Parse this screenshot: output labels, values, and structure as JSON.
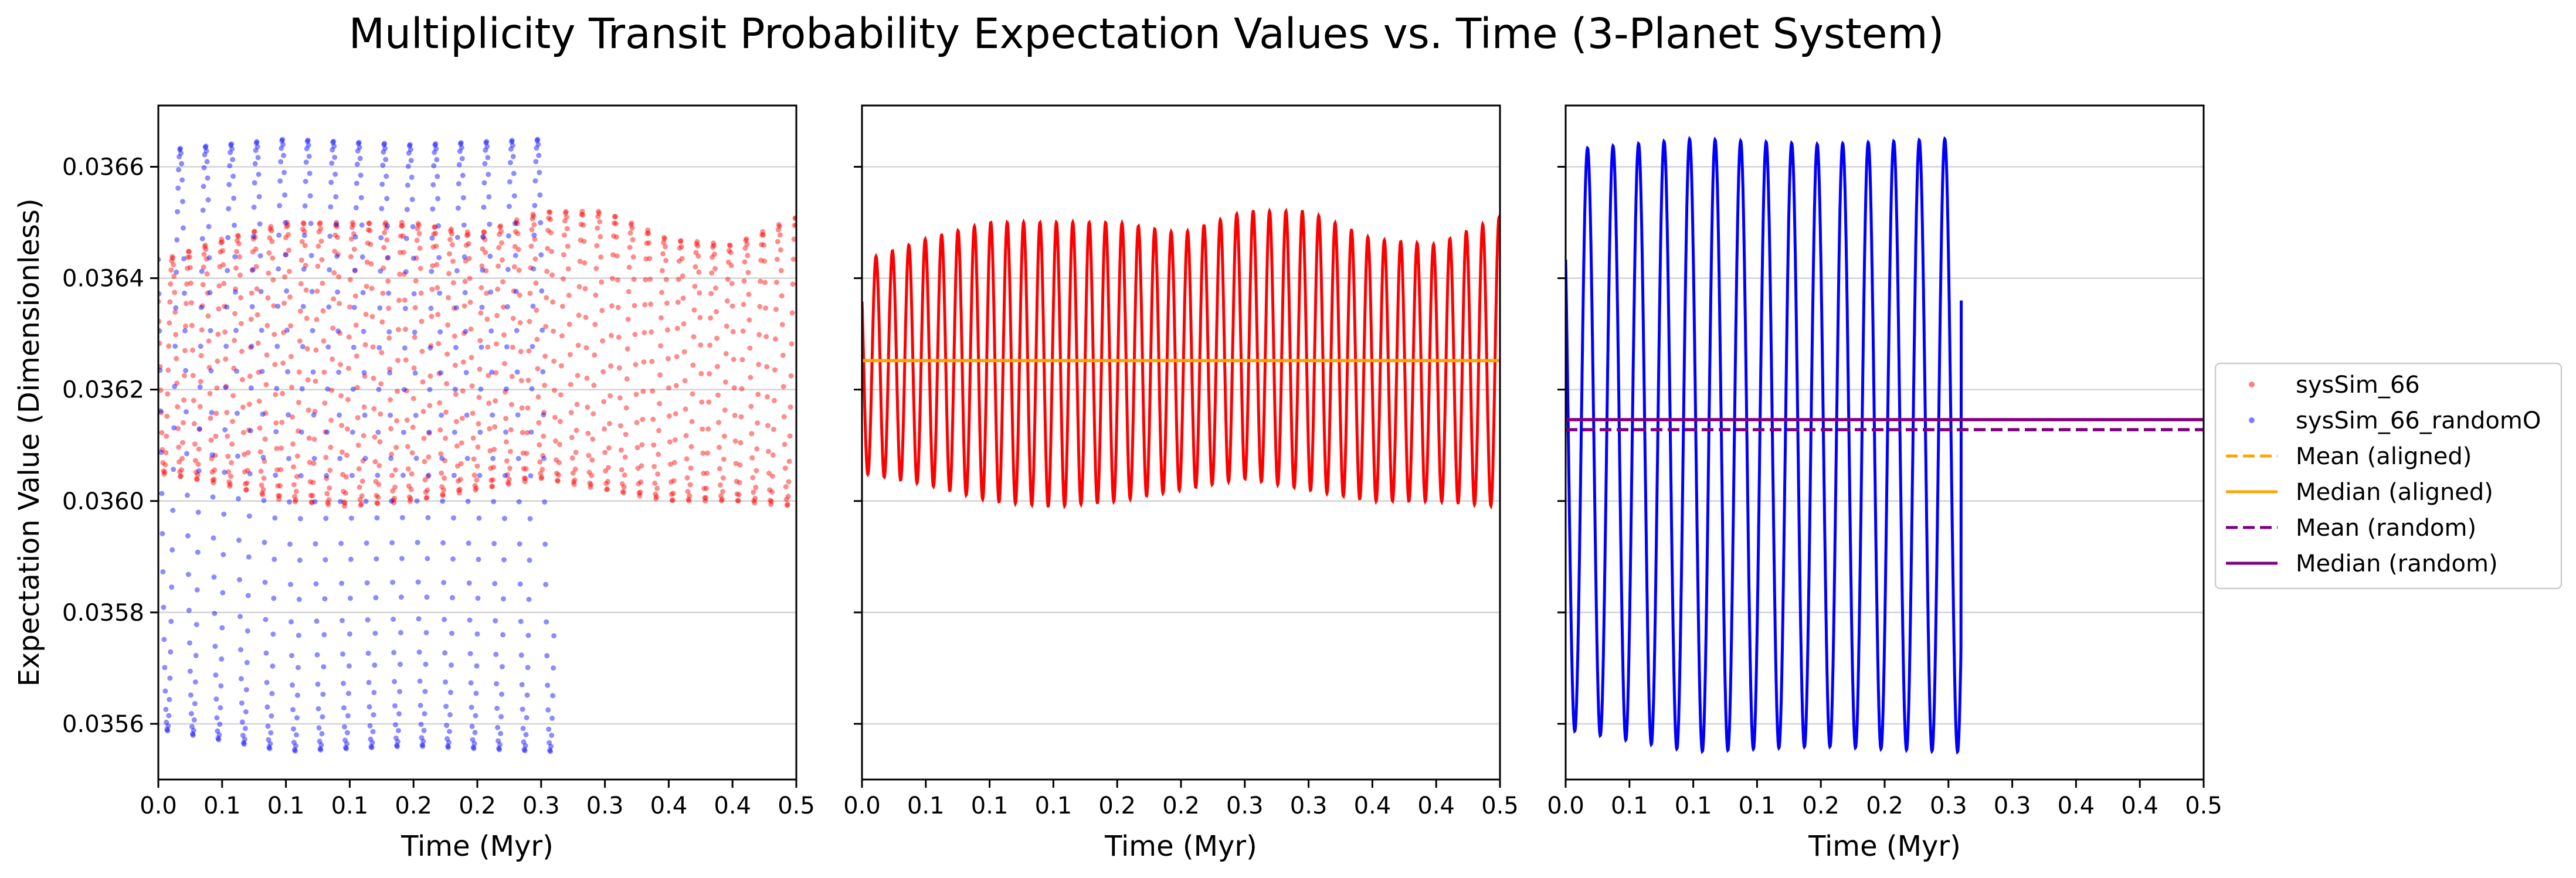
{
  "chart_data": {
    "type": "line",
    "title": "Multiplicity Transit Probability Expectation Values vs. Time (3-Planet System)",
    "ylabel": "Expectation Value (Dimensionless)",
    "ylim": [
      0.0355,
      0.03671
    ],
    "y_ticks": [
      0.0356,
      0.0358,
      0.036,
      0.0362,
      0.0364,
      0.0366
    ],
    "y_tick_labels": [
      "0.0356",
      "0.0358",
      "0.0360",
      "0.0362",
      "0.0364",
      "0.0366"
    ],
    "y_grid": true,
    "legend_position": "right",
    "legend": [
      "sysSim_66",
      "sysSim_66_randomO",
      "Mean (aligned)",
      "Median (aligned)",
      "Mean (random)",
      "Median (random)"
    ],
    "colors": {
      "aligned": "#ff0000",
      "random": "#0000ff",
      "aligned_stats": "#ffa500",
      "random_stats": "#800080",
      "grid": "#d3d3d3"
    },
    "panels": [
      {
        "xlabel": "Time (Myr)",
        "xlim": [
          0.0,
          0.5
        ],
        "x_ticks": [
          0.0,
          0.05,
          0.1,
          0.15,
          0.2,
          0.25,
          0.3,
          0.35,
          0.4,
          0.45,
          0.5
        ],
        "x_tick_labels": [
          "0.0",
          "0.1",
          "0.1",
          "0.1",
          "0.2",
          "0.2",
          "0.3",
          "0.3",
          "0.4",
          "0.4",
          "0.5"
        ],
        "style": "scatter",
        "series": [
          "aligned",
          "random"
        ]
      },
      {
        "xlabel": "Time (Myr)",
        "xlim": [
          0.0,
          0.5
        ],
        "x_ticks": [
          0.0,
          0.05,
          0.1,
          0.15,
          0.2,
          0.25,
          0.3,
          0.35,
          0.4,
          0.45,
          0.5
        ],
        "x_tick_labels": [
          "0.0",
          "0.1",
          "0.1",
          "0.1",
          "0.2",
          "0.2",
          "0.3",
          "0.3",
          "0.4",
          "0.4",
          "0.5"
        ],
        "style": "line",
        "series": [
          "aligned"
        ],
        "hlines": [
          {
            "label": "Mean (aligned)",
            "value": 0.036252,
            "dashed": true,
            "color": "#ffa500"
          },
          {
            "label": "Median (aligned)",
            "value": 0.036252,
            "dashed": false,
            "color": "#ffa500"
          }
        ]
      },
      {
        "xlabel": "Time (Myr)",
        "xlim": [
          0.0,
          0.5
        ],
        "x_ticks": [
          0.0,
          0.05,
          0.1,
          0.15,
          0.2,
          0.25,
          0.3,
          0.35,
          0.4,
          0.45,
          0.5
        ],
        "x_tick_labels": [
          "0.0",
          "0.1",
          "0.1",
          "0.1",
          "0.2",
          "0.2",
          "0.3",
          "0.3",
          "0.4",
          "0.4",
          "0.5"
        ],
        "style": "line",
        "series": [
          "random"
        ],
        "hlines": [
          {
            "label": "Mean (random)",
            "value": 0.036128,
            "dashed": true,
            "color": "#800080"
          },
          {
            "label": "Median (random)",
            "value": 0.036146,
            "dashed": false,
            "color": "#800080"
          }
        ]
      }
    ],
    "series": [
      {
        "name": "sysSim_66",
        "key": "aligned",
        "x_range": [
          0.0,
          0.5
        ],
        "period_myr": 0.01285,
        "max_envelope": {
          "x": [
            0.0,
            0.05,
            0.1,
            0.15,
            0.2,
            0.25,
            0.3,
            0.35,
            0.4,
            0.45,
            0.5
          ],
          "y": [
            0.03643,
            0.03647,
            0.0365,
            0.0365,
            0.0365,
            0.03648,
            0.03652,
            0.03652,
            0.03647,
            0.03646,
            0.03651
          ]
        },
        "min_envelope": {
          "x": [
            0.0,
            0.05,
            0.1,
            0.15,
            0.2,
            0.25,
            0.3,
            0.35,
            0.4,
            0.45,
            0.5
          ],
          "y": [
            0.03605,
            0.03603,
            0.036,
            0.03599,
            0.036,
            0.03602,
            0.03604,
            0.03602,
            0.036,
            0.036,
            0.03599
          ]
        }
      },
      {
        "name": "sysSim_66_randomO",
        "key": "random",
        "x_range": [
          0.0,
          0.31
        ],
        "period_myr": 0.02,
        "max_envelope": {
          "x": [
            0.0,
            0.1,
            0.2,
            0.3
          ],
          "y": [
            0.03663,
            0.03665,
            0.03664,
            0.03665
          ]
        },
        "min_envelope": {
          "x": [
            0.0,
            0.1,
            0.2,
            0.3
          ],
          "y": [
            0.03559,
            0.03555,
            0.03556,
            0.03555
          ]
        },
        "end_value": 0.03636
      }
    ]
  }
}
